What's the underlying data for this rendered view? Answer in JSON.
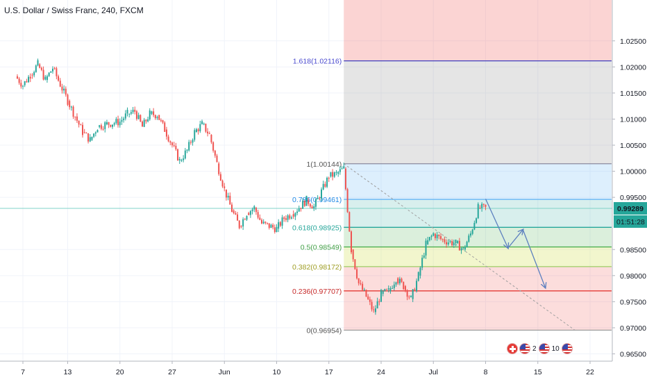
{
  "chart_title": "U.S. Dollar / Swiss Franc, 240, FXCM",
  "colors": {
    "up": "#26a69a",
    "down": "#ef5350",
    "arrow": "#5b7fbf",
    "current_price_bg": "#26a69a",
    "current_line": "#7fd3c8"
  },
  "chart_data": {
    "type": "candlestick",
    "symbol": "USDCHF",
    "timeframe": "240",
    "source": "FXCM",
    "x_tick_labels": [
      "7",
      "13",
      "20",
      "27",
      "Jun",
      "10",
      "17",
      "24",
      "Jul",
      "8",
      "15",
      "22"
    ],
    "y_tick_labels": [
      "1.02500",
      "1.02000",
      "1.01500",
      "1.01000",
      "1.00500",
      "1.00000",
      "0.99500",
      "0.98500",
      "0.98000",
      "0.97500",
      "0.97000",
      "0.96500"
    ],
    "y_range": [
      0.964,
      1.0295
    ],
    "current_price": 0.99289,
    "current_price_label": "0.99289",
    "countdown": "01:51:28",
    "price_path": [
      {
        "day": "May 6",
        "price": 1.0182
      },
      {
        "day": "May 7",
        "price": 1.0165
      },
      {
        "day": "May 8",
        "price": 1.0185
      },
      {
        "day": "May 9",
        "price": 1.0205
      },
      {
        "day": "May 10",
        "price": 1.0175
      },
      {
        "day": "May 11",
        "price": 1.0198
      },
      {
        "day": "May 13",
        "price": 1.0135
      },
      {
        "day": "May 14",
        "price": 1.0105
      },
      {
        "day": "May 15",
        "price": 1.0075
      },
      {
        "day": "May 16",
        "price": 1.006
      },
      {
        "day": "May 17",
        "price": 1.0085
      },
      {
        "day": "May 18",
        "price": 1.009
      },
      {
        "day": "May 20",
        "price": 1.0095
      },
      {
        "day": "May 21",
        "price": 1.011
      },
      {
        "day": "May 22",
        "price": 1.0115
      },
      {
        "day": "May 23",
        "price": 1.0085
      },
      {
        "day": "May 24",
        "price": 1.011
      },
      {
        "day": "May 25",
        "price": 1.0108
      },
      {
        "day": "May 26",
        "price": 1.008
      },
      {
        "day": "May 27",
        "price": 1.005
      },
      {
        "day": "May 28",
        "price": 1.002
      },
      {
        "day": "May 29",
        "price": 1.004
      },
      {
        "day": "May 30",
        "price": 1.0075
      },
      {
        "day": "May 31",
        "price": 1.009
      },
      {
        "day": "Jun 1",
        "price": 1.007
      },
      {
        "day": "Jun 2",
        "price": 1.0015
      },
      {
        "day": "Jun 3",
        "price": 0.9965
      },
      {
        "day": "Jun 4",
        "price": 0.9925
      },
      {
        "day": "Jun 5",
        "price": 0.9895
      },
      {
        "day": "Jun 6",
        "price": 0.992
      },
      {
        "day": "Jun 7",
        "price": 0.993
      },
      {
        "day": "Jun 8",
        "price": 0.99
      },
      {
        "day": "Jun 10",
        "price": 0.989
      },
      {
        "day": "Jun 11",
        "price": 0.991
      },
      {
        "day": "Jun 12",
        "price": 0.9918
      },
      {
        "day": "Jun 13",
        "price": 0.993
      },
      {
        "day": "Jun 14",
        "price": 0.9945
      },
      {
        "day": "Jun 15",
        "price": 0.9932
      },
      {
        "day": "Jun 17",
        "price": 0.999
      },
      {
        "day": "Jun 18",
        "price": 0.9995
      },
      {
        "day": "Jun 19",
        "price": 1.0005
      },
      {
        "day": "Jun 20",
        "price": 0.985
      },
      {
        "day": "Jun 21",
        "price": 0.9785
      },
      {
        "day": "Jun 22",
        "price": 0.976
      },
      {
        "day": "Jun 23",
        "price": 0.973
      },
      {
        "day": "Jun 24",
        "price": 0.9765
      },
      {
        "day": "Jun 25",
        "price": 0.977
      },
      {
        "day": "Jun 26",
        "price": 0.9795
      },
      {
        "day": "Jun 27",
        "price": 0.978
      },
      {
        "day": "Jun 28",
        "price": 0.9755
      },
      {
        "day": "Jun 29",
        "price": 0.98
      },
      {
        "day": "Jun 30",
        "price": 0.986
      },
      {
        "day": "Jul 1",
        "price": 0.988
      },
      {
        "day": "Jul 2",
        "price": 0.987
      },
      {
        "day": "Jul 3",
        "price": 0.9865
      },
      {
        "day": "Jul 4",
        "price": 0.9862
      },
      {
        "day": "Jul 5",
        "price": 0.985
      },
      {
        "day": "Jul 6",
        "price": 0.988
      },
      {
        "day": "Jul 7",
        "price": 0.993
      },
      {
        "day": "Jul 8",
        "price": 0.9929
      }
    ],
    "fib_levels": [
      {
        "ratio": 1.618,
        "price": 1.02116,
        "label": "1.618(1.02116)",
        "line_color": "#3f3fbf",
        "fill": "rgba(120,120,230,0.35)",
        "text_color": "#4a4acf"
      },
      {
        "ratio": 1,
        "price": 1.00144,
        "label": "1(1.00144)",
        "line_color": "#8a8a9e",
        "fill": "rgba(150,150,150,0.25)",
        "text_color": "#555555"
      },
      {
        "ratio": 0.786,
        "price": 0.99461,
        "label": "0.786(0.99461)",
        "line_color": "#64b5f6",
        "fill": "rgba(100,181,246,0.22)",
        "text_color": "#1e88e5"
      },
      {
        "ratio": 0.618,
        "price": 0.98925,
        "label": "0.618(0.98925)",
        "line_color": "#26a69a",
        "fill": "rgba(38,166,154,0.18)",
        "text_color": "#26a69a"
      },
      {
        "ratio": 0.5,
        "price": 0.98549,
        "label": "0.5(0.98549)",
        "line_color": "#4caf50",
        "fill": "rgba(76,175,80,0.2)",
        "text_color": "#43a047"
      },
      {
        "ratio": 0.382,
        "price": 0.98172,
        "label": "0.382(0.98172)",
        "line_color": "#9ccc65",
        "fill": "rgba(205,220,57,0.25)",
        "text_color": "#9e9d24"
      },
      {
        "ratio": 0.236,
        "price": 0.97707,
        "label": "0.236(0.97707)",
        "line_color": "#e53935",
        "fill": "rgba(239,83,80,0.2)",
        "text_color": "#c62828"
      },
      {
        "ratio": 0,
        "price": 0.96954,
        "label": "0(0.96954)",
        "line_color": "#9e9e9e",
        "fill": "none",
        "text_color": "#555555"
      }
    ],
    "fib_extension_top_fill": "rgba(239,83,80,0.25)",
    "projection_arrows": [
      {
        "from": {
          "day": "Jul 8",
          "price": 0.9947
        },
        "to": {
          "day": "Jul 11",
          "price": 0.9853
        }
      },
      {
        "from": {
          "day": "Jul 11",
          "price": 0.9853
        },
        "to": {
          "day": "Jul 13",
          "price": 0.9888
        }
      },
      {
        "from": {
          "day": "Jul 13",
          "price": 0.9888
        },
        "to": {
          "day": "Jul 16",
          "price": 0.9777
        }
      }
    ],
    "trendline": {
      "from": {
        "day": "Jun 19",
        "price": 1.00144
      },
      "to": {
        "day": "Jul 20",
        "price": 0.9695
      }
    },
    "grid": true
  },
  "events": {
    "badge_count_1": "2",
    "badge_count_2": "10"
  }
}
